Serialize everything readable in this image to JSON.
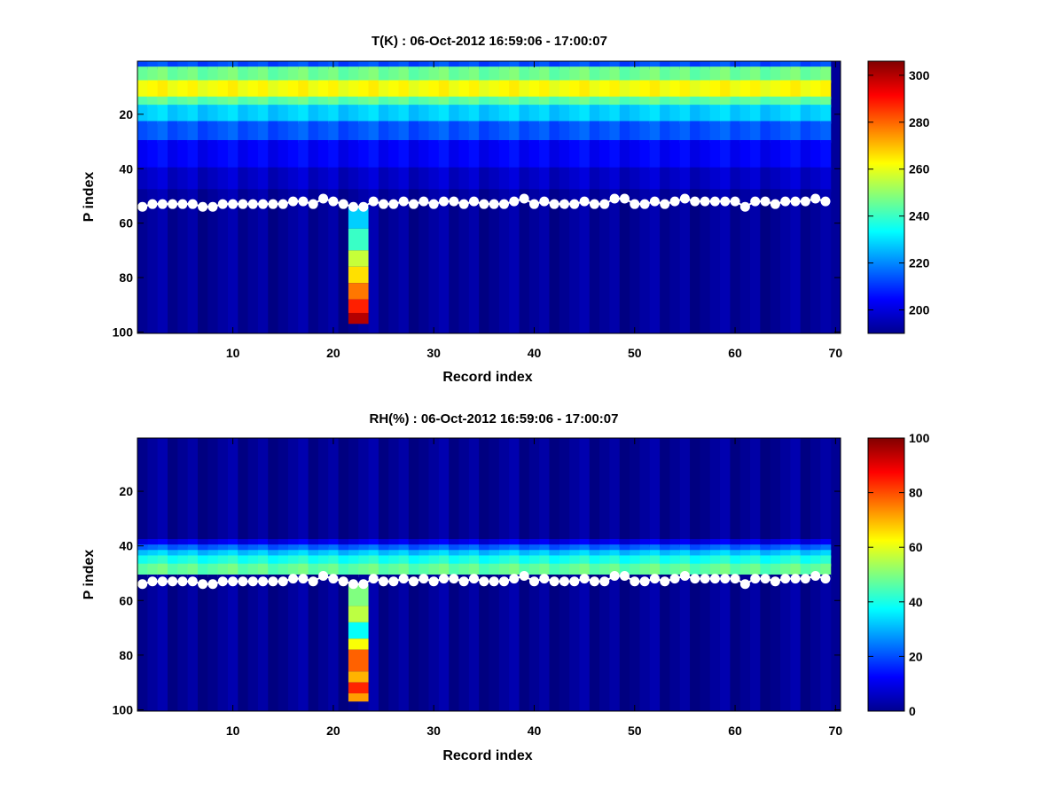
{
  "chart_data": [
    {
      "type": "heatmap",
      "title": "T(K) : 06-Oct-2012 16:59:06 - 17:00:07",
      "xlabel": "Record index",
      "ylabel": "P index",
      "xlim": [
        0.5,
        70.5
      ],
      "ylim": [
        0.5,
        100.5
      ],
      "y_reversed": true,
      "xticks": [
        10,
        20,
        30,
        40,
        50,
        60,
        70
      ],
      "yticks": [
        20,
        40,
        60,
        80,
        100
      ],
      "colorbar": {
        "colormap": "jet",
        "range": [
          190,
          306
        ],
        "ticks": [
          200,
          220,
          240,
          260,
          280,
          300
        ]
      },
      "n_records": 69,
      "n_levels": 100,
      "profile_bands": [
        {
          "from": 1,
          "to": 3,
          "value": 213
        },
        {
          "from": 3,
          "to": 8,
          "value": 246
        },
        {
          "from": 8,
          "to": 14,
          "value": 262
        },
        {
          "from": 14,
          "to": 17,
          "value": 244
        },
        {
          "from": 17,
          "to": 23,
          "value": 228
        },
        {
          "from": 23,
          "to": 30,
          "value": 214
        },
        {
          "from": 30,
          "to": 40,
          "value": 204
        },
        {
          "from": 40,
          "to": 48,
          "value": 198
        },
        {
          "from": 48,
          "to": 53,
          "value": 194
        },
        {
          "from": 53,
          "to": 100,
          "value": 193
        }
      ],
      "anomaly": {
        "record": 22,
        "record_to": 23,
        "from": 54,
        "to": 97,
        "bands": [
          {
            "from": 54,
            "to": 62,
            "value": 228
          },
          {
            "from": 62,
            "to": 70,
            "value": 240
          },
          {
            "from": 70,
            "to": 76,
            "value": 256
          },
          {
            "from": 76,
            "to": 82,
            "value": 266
          },
          {
            "from": 82,
            "to": 88,
            "value": 278
          },
          {
            "from": 88,
            "to": 93,
            "value": 288
          },
          {
            "from": 93,
            "to": 97,
            "value": 300
          }
        ]
      },
      "series": [
        {
          "name": "",
          "x": [
            1,
            2,
            3,
            4,
            5,
            6,
            7,
            8,
            9,
            10,
            11,
            12,
            13,
            14,
            15,
            16,
            17,
            18,
            19,
            20,
            21,
            22,
            23,
            24,
            25,
            26,
            27,
            28,
            29,
            30,
            31,
            32,
            33,
            34,
            35,
            36,
            37,
            38,
            39,
            40,
            41,
            42,
            43,
            44,
            45,
            46,
            47,
            48,
            49,
            50,
            51,
            52,
            53,
            54,
            55,
            56,
            57,
            58,
            59,
            60,
            61,
            62,
            63,
            64,
            65,
            66,
            67,
            68,
            69
          ],
          "y": [
            54,
            53,
            53,
            53,
            53,
            53,
            54,
            54,
            53,
            53,
            53,
            53,
            53,
            53,
            53,
            52,
            52,
            53,
            51,
            52,
            53,
            54,
            54,
            52,
            53,
            53,
            52,
            53,
            52,
            53,
            52,
            52,
            53,
            52,
            53,
            53,
            53,
            52,
            51,
            53,
            52,
            53,
            53,
            53,
            52,
            53,
            53,
            51,
            51,
            53,
            53,
            52,
            53,
            52,
            51,
            52,
            52,
            52,
            52,
            52,
            54,
            52,
            52,
            53,
            52,
            52,
            52,
            51,
            52
          ]
        }
      ]
    },
    {
      "type": "heatmap",
      "title": "RH(%) : 06-Oct-2012 16:59:06 - 17:00:07",
      "xlabel": "Record index",
      "ylabel": "P index",
      "xlim": [
        0.5,
        70.5
      ],
      "ylim": [
        0.5,
        100.5
      ],
      "y_reversed": true,
      "xticks": [
        10,
        20,
        30,
        40,
        50,
        60,
        70
      ],
      "yticks": [
        20,
        40,
        60,
        80,
        100
      ],
      "colorbar": {
        "colormap": "jet",
        "range": [
          0,
          100
        ],
        "ticks": [
          0,
          20,
          40,
          60,
          80,
          100
        ]
      },
      "n_records": 69,
      "n_levels": 100,
      "profile_bands": [
        {
          "from": 1,
          "to": 38,
          "value": 2
        },
        {
          "from": 38,
          "to": 40,
          "value": 10
        },
        {
          "from": 40,
          "to": 42,
          "value": 22
        },
        {
          "from": 42,
          "to": 44,
          "value": 32
        },
        {
          "from": 44,
          "to": 47,
          "value": 40
        },
        {
          "from": 47,
          "to": 51,
          "value": 47
        },
        {
          "from": 51,
          "to": 100,
          "value": 2
        }
      ],
      "anomaly": {
        "record": 22,
        "record_to": 23,
        "from": 54,
        "to": 97,
        "bands": [
          {
            "from": 54,
            "to": 62,
            "value": 50
          },
          {
            "from": 62,
            "to": 68,
            "value": 56
          },
          {
            "from": 68,
            "to": 74,
            "value": 38
          },
          {
            "from": 74,
            "to": 78,
            "value": 62
          },
          {
            "from": 78,
            "to": 86,
            "value": 78
          },
          {
            "from": 86,
            "to": 90,
            "value": 70
          },
          {
            "from": 90,
            "to": 94,
            "value": 84
          },
          {
            "from": 94,
            "to": 97,
            "value": 72
          }
        ]
      },
      "series": [
        {
          "name": "",
          "x": [
            1,
            2,
            3,
            4,
            5,
            6,
            7,
            8,
            9,
            10,
            11,
            12,
            13,
            14,
            15,
            16,
            17,
            18,
            19,
            20,
            21,
            22,
            23,
            24,
            25,
            26,
            27,
            28,
            29,
            30,
            31,
            32,
            33,
            34,
            35,
            36,
            37,
            38,
            39,
            40,
            41,
            42,
            43,
            44,
            45,
            46,
            47,
            48,
            49,
            50,
            51,
            52,
            53,
            54,
            55,
            56,
            57,
            58,
            59,
            60,
            61,
            62,
            63,
            64,
            65,
            66,
            67,
            68,
            69
          ],
          "y": [
            54,
            53,
            53,
            53,
            53,
            53,
            54,
            54,
            53,
            53,
            53,
            53,
            53,
            53,
            53,
            52,
            52,
            53,
            51,
            52,
            53,
            54,
            54,
            52,
            53,
            53,
            52,
            53,
            52,
            53,
            52,
            52,
            53,
            52,
            53,
            53,
            53,
            52,
            51,
            53,
            52,
            53,
            53,
            53,
            52,
            53,
            53,
            51,
            51,
            53,
            53,
            52,
            53,
            52,
            51,
            52,
            52,
            52,
            52,
            52,
            54,
            52,
            52,
            53,
            52,
            52,
            52,
            51,
            52
          ]
        }
      ]
    }
  ]
}
